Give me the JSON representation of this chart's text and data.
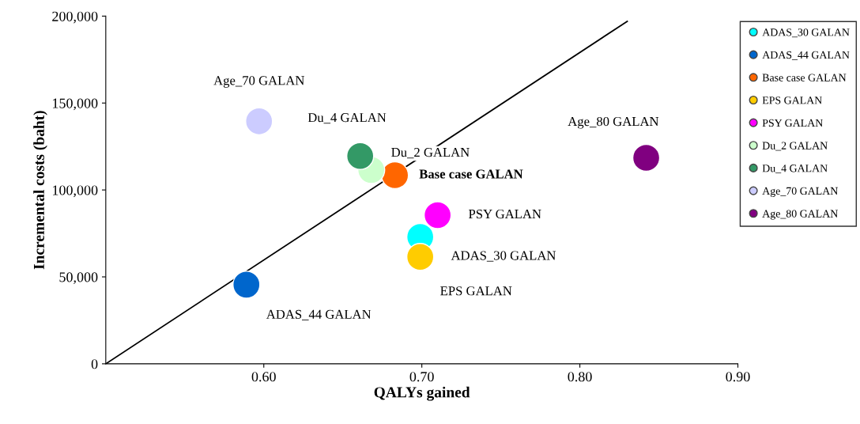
{
  "chart_data": {
    "type": "scatter",
    "xlabel": "QALYs gained",
    "ylabel": "Incremental costs (baht)",
    "xlim": [
      0.5,
      0.9
    ],
    "xticks": [
      {
        "value": 0.6,
        "label": "0.60"
      },
      {
        "value": 0.7,
        "label": "0.70"
      },
      {
        "value": 0.8,
        "label": "0.80"
      },
      {
        "value": 0.9,
        "label": "0.90"
      }
    ],
    "ylim": [
      0,
      200000
    ],
    "yticks": [
      {
        "value": 0,
        "label": "0"
      },
      {
        "value": 50000,
        "label": "50,000"
      },
      {
        "value": 100000,
        "label": "100,000"
      },
      {
        "value": 150000,
        "label": "150,000"
      },
      {
        "value": 200000,
        "label": "200,000"
      }
    ],
    "grid": false,
    "legend": "right",
    "marker": "circle",
    "series": [
      {
        "name": "ADAS_30 GALAN",
        "color": "#00ffff",
        "x": [
          0.699
        ],
        "values": [
          73000
        ]
      },
      {
        "name": "ADAS_44 GALAN",
        "color": "#0066cc",
        "x": [
          0.589
        ],
        "values": [
          45500
        ]
      },
      {
        "name": "Base case GALAN",
        "color": "#ff6600",
        "x": [
          0.683
        ],
        "values": [
          108500
        ]
      },
      {
        "name": "EPS GALAN",
        "color": "#ffcc00",
        "x": [
          0.699
        ],
        "values": [
          61500
        ]
      },
      {
        "name": "PSY GALAN",
        "color": "#ff00ff",
        "x": [
          0.71
        ],
        "values": [
          85500
        ]
      },
      {
        "name": "Du_2 GALAN",
        "color": "#ccffcc",
        "x": [
          0.668
        ],
        "values": [
          111500
        ]
      },
      {
        "name": "Du_4 GALAN",
        "color": "#339966",
        "x": [
          0.661
        ],
        "values": [
          119500
        ]
      },
      {
        "name": "Age_70 GALAN",
        "color": "#ccccff",
        "x": [
          0.597
        ],
        "values": [
          139500
        ]
      },
      {
        "name": "Age_80 GALAN",
        "color": "#800080",
        "x": [
          0.842
        ],
        "values": [
          118500
        ]
      },
      {
        "type": "line",
        "color": "#000000",
        "marker": "none",
        "x": [
          0.5,
          0.83
        ],
        "values": [
          0,
          197000
        ]
      }
    ],
    "annotations": [
      {
        "text": "ADAS_30 GALAN",
        "x": 0.699,
        "y": 73000
      },
      {
        "text": "ADAS_44 GALAN",
        "x": 0.589,
        "y": 45500
      },
      {
        "text": "Base case GALAN",
        "x": 0.683,
        "y": 108500
      },
      {
        "text": "EPS GALAN",
        "x": 0.699,
        "y": 61500
      },
      {
        "text": "PSY GALAN",
        "x": 0.71,
        "y": 85500
      },
      {
        "text": "Du_2 GALAN",
        "x": 0.668,
        "y": 111500
      },
      {
        "text": "Du_4 GALAN",
        "x": 0.661,
        "y": 119500
      },
      {
        "text": "Age_70 GALAN",
        "x": 0.597,
        "y": 139500
      },
      {
        "text": "Age_80 GALAN",
        "x": 0.842,
        "y": 118500
      }
    ]
  }
}
